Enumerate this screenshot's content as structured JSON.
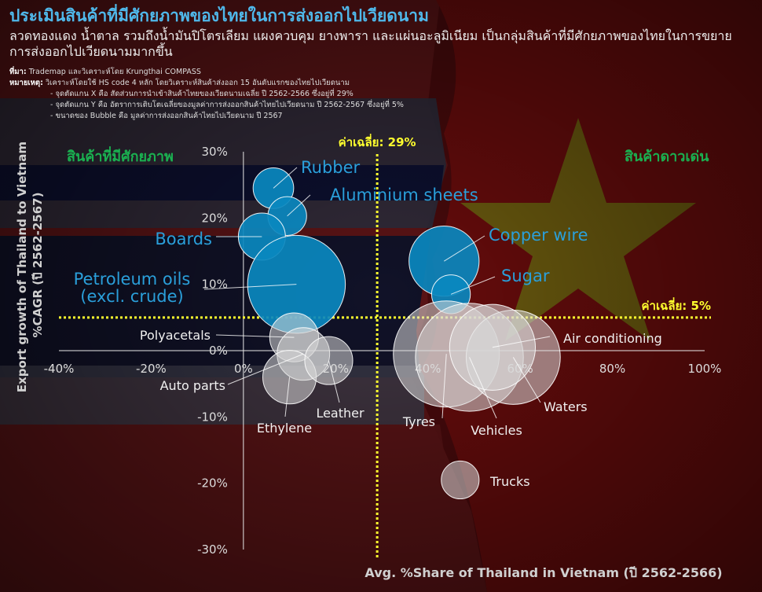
{
  "header": {
    "title": "ประเมินสินค้าที่มีศักยภาพของไทยในการส่งออกไปเวียดนาม",
    "subtitle": "ลวดทองแดง น้ำตาล รวมถึงน้ำมันปิโตรเลียม แผงควบคุม ยางพารา และแผ่นอะลูมิเนียม เป็นกลุ่มสินค้าที่มีศักยภาพของไทยในการขยายการส่งออกไปเวียดนามมากขึ้น",
    "source_label": "ที่มา:",
    "source_text": "Trademap และวิเคราะห์โดย Krungthai COMPASS",
    "note_label": "หมายเหตุ:",
    "note_text": "วิเคราะห์โดยใช้ HS code 4 หลัก โดยวิเคราะห์สินค้าส่งออก 15 อันดับแรกของไทยไปเวียดนาม",
    "note_lines": [
      "- จุดตัดแกน X คือ สัดส่วนการนำเข้าสินค้าไทยของเวียดนามเฉลี่ย ปี 2562-2566 ซึ่งอยู่ที่ 29%",
      "- จุดตัดแกน Y คือ อัตราการเติบโตเฉลี่ยของมูลค่าการส่งออกสินค้าไทยไปเวียดนาม ปี 2562-2567 ซึ่งอยู่ที่ 5%",
      "- ขนาดของ Bubble คือ มูลค่าการส่งออกสินค้าไทยไปเวียดนาม ปี 2567"
    ]
  },
  "chart_data": {
    "type": "scatter",
    "xlabel": "Avg. %Share of Thailand in Vietnam (ปี 2562-2566)",
    "ylabel": "Export growth of Thailand to Vietnam %CAGR (ปี 2562-2567)",
    "xlim": [
      -40,
      100
    ],
    "ylim": [
      -30,
      30
    ],
    "x_ticks": [
      -40,
      -20,
      0,
      20,
      40,
      60,
      80,
      100
    ],
    "x_tick_labels": [
      "-40%",
      "-20%",
      "0%",
      "20%",
      "40%",
      "60%",
      "80%",
      "100%"
    ],
    "y_ticks": [
      30,
      20,
      10,
      0,
      -10,
      -20,
      -30
    ],
    "y_tick_labels": [
      "30%",
      "20%",
      "10%",
      "0%",
      "-10%",
      "-20%",
      "-30%"
    ],
    "x_ref": {
      "value": 29,
      "label": "ค่าเฉลี่ย: 29%"
    },
    "y_ref": {
      "value": 5,
      "label": "ค่าเฉลี่ย: 5%"
    },
    "quadrant_labels": {
      "top_left": "สินค้าที่มีศักยภาพ",
      "top_right": "สินค้าดาวเด่น"
    },
    "highlight_color": "#0a88bf",
    "other_color": "#d8d8d8",
    "ref_color": "#ffff2e",
    "quadrant_color": "#1ab050",
    "points": [
      {
        "name": "Rubber",
        "x": 6.5,
        "y": 24.5,
        "r": 4.4,
        "highlight": true
      },
      {
        "name": "Aluminium sheets",
        "x": 9.5,
        "y": 20.3,
        "r": 4.2,
        "highlight": true
      },
      {
        "name": "Boards",
        "x": 4,
        "y": 17.2,
        "r": 5.1,
        "highlight": true
      },
      {
        "name": "Petroleum oils (excl. crude)",
        "x": 11.5,
        "y": 10,
        "r": 10.6,
        "highlight": true
      },
      {
        "name": "Copper wire",
        "x": 43.5,
        "y": 13.5,
        "r": 7.6,
        "highlight": true
      },
      {
        "name": "Sugar",
        "x": 45,
        "y": 8.5,
        "r": 4.2,
        "highlight": true
      },
      {
        "name": "Polyacetals",
        "x": 11,
        "y": 2,
        "r": 5.3,
        "highlight": false
      },
      {
        "name": "Auto parts",
        "x": 13,
        "y": -0.5,
        "r": 5.7,
        "highlight": false
      },
      {
        "name": "Ethylene",
        "x": 10,
        "y": -4,
        "r": 5.8,
        "highlight": false
      },
      {
        "name": "Leather",
        "x": 18.5,
        "y": -1.5,
        "r": 5.2,
        "highlight": false
      },
      {
        "name": "Tyres",
        "x": 44,
        "y": -0.5,
        "r": 11.5,
        "highlight": false
      },
      {
        "name": "Vehicles",
        "x": 49,
        "y": -1,
        "r": 11.7,
        "highlight": false
      },
      {
        "name": "Waters",
        "x": 58.5,
        "y": -1,
        "r": 10.2,
        "highlight": false
      },
      {
        "name": "Air conditioning",
        "x": 54,
        "y": 0.5,
        "r": 9.3,
        "highlight": false
      },
      {
        "name": "Trucks",
        "x": 47,
        "y": -19.5,
        "r": 4.1,
        "highlight": false
      }
    ]
  }
}
